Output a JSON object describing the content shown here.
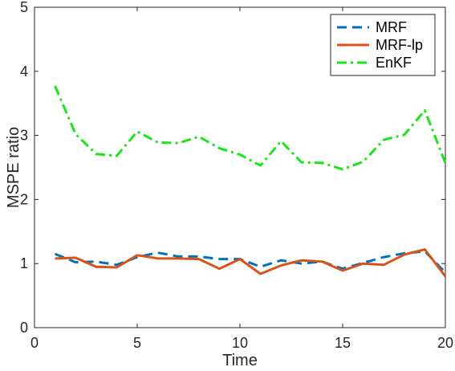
{
  "chart_data": {
    "type": "line",
    "xlabel": "Time",
    "ylabel": "MSPE ratio",
    "xlim": [
      0,
      20
    ],
    "ylim": [
      0,
      5
    ],
    "xticks": [
      0,
      5,
      10,
      15,
      20
    ],
    "yticks": [
      0,
      1,
      2,
      3,
      4,
      5
    ],
    "grid": false,
    "legend_position": "top-right",
    "x": [
      1,
      2,
      3,
      4,
      5,
      6,
      7,
      8,
      9,
      10,
      11,
      12,
      13,
      14,
      15,
      16,
      17,
      18,
      19,
      20
    ],
    "series": [
      {
        "name": "MRF",
        "color": "#0072BD",
        "style": "dashed",
        "values": [
          1.15,
          1.02,
          1.03,
          0.98,
          1.1,
          1.17,
          1.11,
          1.11,
          1.07,
          1.07,
          0.95,
          1.05,
          1.0,
          1.03,
          0.92,
          1.01,
          1.1,
          1.16,
          1.19,
          0.86
        ]
      },
      {
        "name": "MRF-lp",
        "color": "#D95319",
        "style": "solid",
        "values": [
          1.08,
          1.09,
          0.95,
          0.94,
          1.13,
          1.08,
          1.08,
          1.07,
          0.92,
          1.07,
          0.84,
          0.97,
          1.05,
          1.03,
          0.89,
          1.0,
          0.98,
          1.14,
          1.22,
          0.8
        ]
      },
      {
        "name": "EnKF",
        "color": "#1AE51A",
        "style": "dashdot",
        "values": [
          3.77,
          3.02,
          2.71,
          2.68,
          3.06,
          2.89,
          2.88,
          2.98,
          2.8,
          2.7,
          2.53,
          2.91,
          2.58,
          2.57,
          2.47,
          2.59,
          2.93,
          3.01,
          3.39,
          2.57
        ]
      }
    ]
  }
}
